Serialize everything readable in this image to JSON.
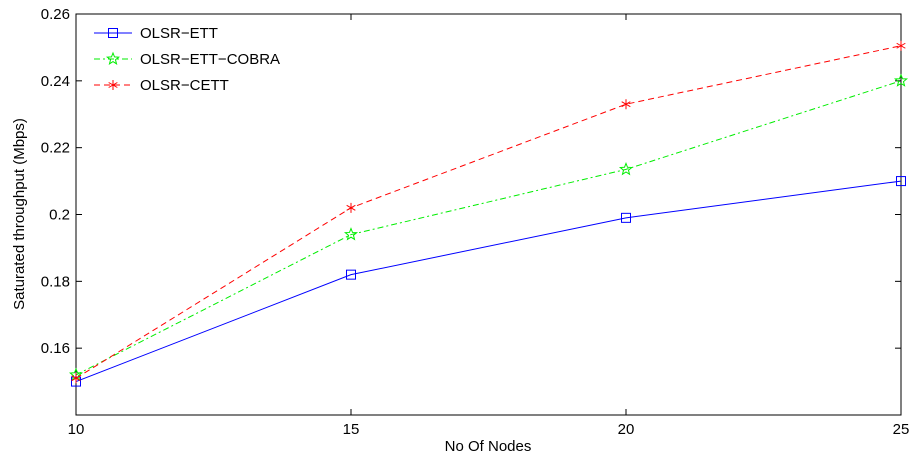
{
  "chart_data": {
    "type": "line",
    "title": "",
    "xlabel": "No Of Nodes",
    "ylabel": "Saturated throughput (Mbps)",
    "x": [
      10,
      15,
      20,
      25
    ],
    "xlim": [
      10,
      25
    ],
    "ylim": [
      0.14,
      0.26
    ],
    "xticks": [
      10,
      15,
      20,
      25
    ],
    "yticks": [
      0.16,
      0.18,
      0.2,
      0.22,
      0.24,
      0.26
    ],
    "ytick_labels": [
      "0.16",
      "0.18",
      "0.2",
      "0.22",
      "0.24",
      "0.26"
    ],
    "grid": false,
    "legend_position": "top-left",
    "series": [
      {
        "name": "OLSR−ETT",
        "values": [
          0.15,
          0.182,
          0.199,
          0.21
        ],
        "color": "#0000ff",
        "dash": "solid",
        "marker": "square"
      },
      {
        "name": "OLSR−ETT−COBRA",
        "values": [
          0.152,
          0.194,
          0.2135,
          0.24
        ],
        "color": "#00ee00",
        "dash": "dash-dot",
        "marker": "star"
      },
      {
        "name": "OLSR−CETT",
        "values": [
          0.151,
          0.202,
          0.233,
          0.2505
        ],
        "color": "#ff0000",
        "dash": "dashed",
        "marker": "asterisk"
      }
    ]
  }
}
